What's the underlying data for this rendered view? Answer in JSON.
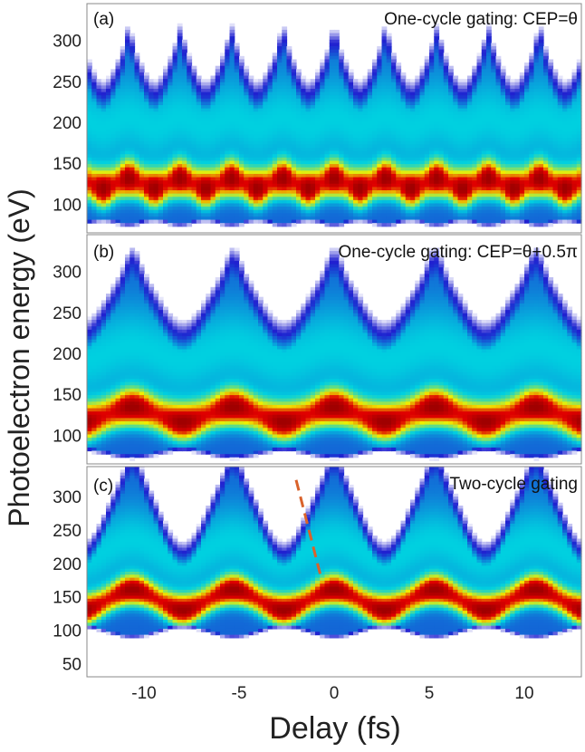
{
  "chart_data": {
    "type": "heatmap",
    "xlabel": "Delay (fs)",
    "ylabel": "Photoelectron energy (eV)",
    "xlim": [
      -13,
      13
    ],
    "xticks": [
      -10,
      -5,
      0,
      5,
      10
    ],
    "xtick_labels": [
      "-10",
      "-5",
      "0",
      "5",
      "10"
    ],
    "colormap": [
      "#ffffff",
      "#2020d0",
      "#00d0e0",
      "#f0f000",
      "#e00000",
      "#a00000"
    ],
    "panels": [
      {
        "tag": "(a)",
        "title": "One-cycle gating: CEP=θ",
        "ylim": [
          65,
          345
        ],
        "yticks": [
          100,
          150,
          200,
          250,
          300
        ],
        "ytick_labels": [
          "100",
          "150",
          "200",
          "250",
          "300"
        ],
        "peak_energy_eV": 125,
        "modulation_amplitude_eV": 10,
        "modulation_period_fs": 2.7,
        "high_energy_edge_eV": 255
      },
      {
        "tag": "(b)",
        "title": "One-cycle gating: CEP=θ+0.5π",
        "ylim": [
          65,
          345
        ],
        "yticks": [
          100,
          150,
          200,
          250,
          300
        ],
        "ytick_labels": [
          "100",
          "150",
          "200",
          "250",
          "300"
        ],
        "peak_energy_eV": 125,
        "modulation_amplitude_eV": 15,
        "modulation_period_fs": 5.3,
        "high_energy_edge_eV": 255
      },
      {
        "tag": "(c)",
        "title": "Two-cycle gating",
        "ylim": [
          30,
          345
        ],
        "yticks": [
          50,
          100,
          150,
          200,
          250,
          300
        ],
        "ytick_labels": [
          "50",
          "100",
          "150",
          "200",
          "250",
          "300"
        ],
        "peak_energy_eV": 145,
        "modulation_amplitude_eV": 25,
        "modulation_period_fs": 5.3,
        "high_energy_edge_eV": 270,
        "dashed_line": {
          "x": [
            -2.0,
            -0.7
          ],
          "y": [
            325,
            180
          ],
          "color": "#d9622b"
        }
      }
    ]
  }
}
